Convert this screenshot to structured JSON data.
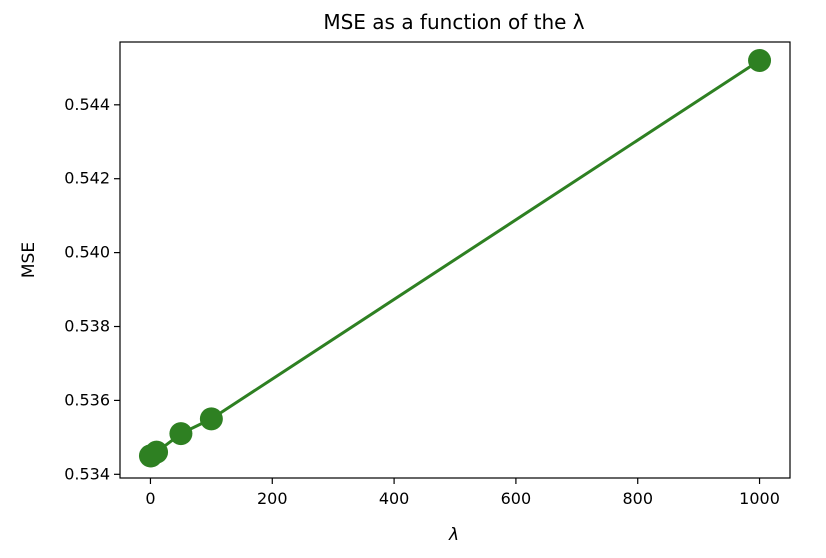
{
  "chart_data": {
    "type": "line",
    "title": "MSE as a function of the λ",
    "xlabel": "λ",
    "ylabel": "MSE",
    "xlim": [
      -50,
      1050
    ],
    "ylim": [
      0.5339,
      0.5457
    ],
    "xticks": [
      0,
      200,
      400,
      600,
      800,
      1000
    ],
    "xtick_labels": [
      "0",
      "200",
      "400",
      "600",
      "800",
      "1000"
    ],
    "yticks": [
      0.534,
      0.536,
      0.538,
      0.54,
      0.542,
      0.544
    ],
    "ytick_labels": [
      "0.534",
      "0.536",
      "0.538",
      "0.540",
      "0.542",
      "0.544"
    ],
    "grid": false,
    "series": [
      {
        "color": "#2e8022",
        "marker": "circle",
        "x": [
          0,
          1,
          10,
          50,
          100,
          1000
        ],
        "y": [
          0.5345,
          0.5345,
          0.5346,
          0.5351,
          0.5355,
          0.5452
        ]
      }
    ]
  }
}
